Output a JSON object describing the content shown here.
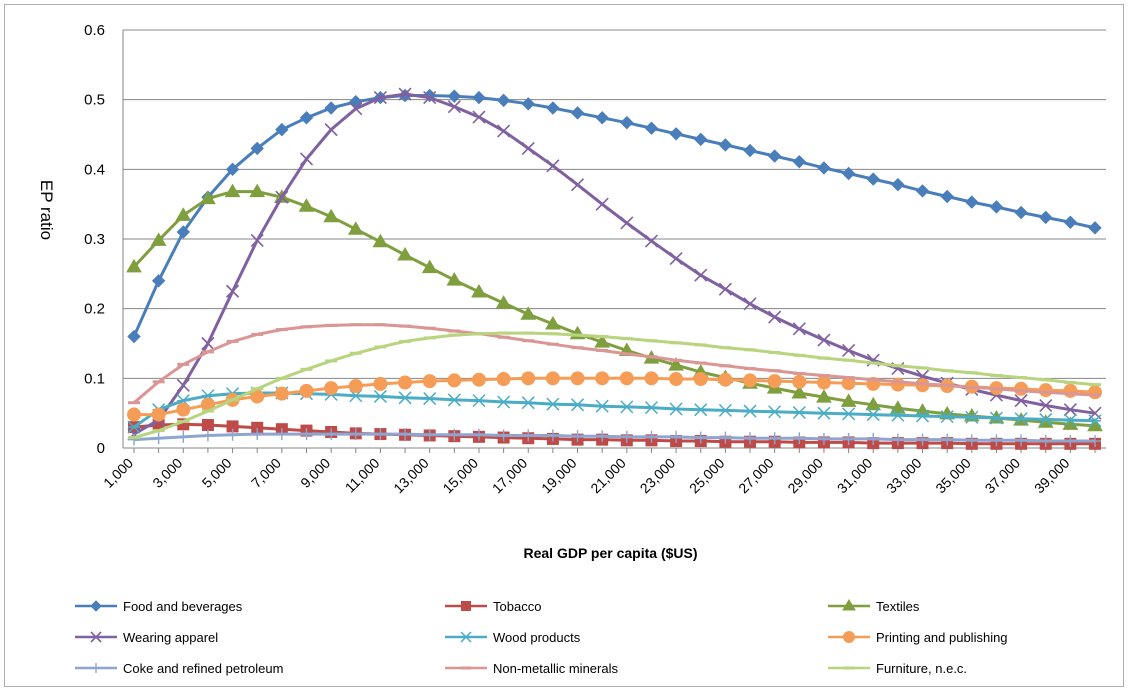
{
  "chart_data": {
    "type": "line",
    "title": "",
    "xlabel": "Real GDP per capita ($US)",
    "ylabel": "EP ratio",
    "ylim": [
      0,
      0.6
    ],
    "y_ticks": [
      "0",
      "0.1",
      "0.2",
      "0.3",
      "0.4",
      "0.5",
      "0.6"
    ],
    "y_tick_values": [
      0,
      0.1,
      0.2,
      0.3,
      0.4,
      0.5,
      0.6
    ],
    "x_tick_labels": [
      "1,000",
      "3,000",
      "5,000",
      "7,000",
      "9,000",
      "11,000",
      "13,000",
      "15,000",
      "17,000",
      "19,000",
      "21,000",
      "23,000",
      "25,000",
      "27,000",
      "29,000",
      "31,000",
      "33,000",
      "35,000",
      "37,000",
      "39,000"
    ],
    "x_tick_values": [
      1000,
      3000,
      5000,
      7000,
      9000,
      11000,
      13000,
      15000,
      17000,
      19000,
      21000,
      23000,
      25000,
      27000,
      29000,
      31000,
      33000,
      35000,
      37000,
      39000
    ],
    "xlim": [
      1000,
      40000
    ],
    "x": [
      1000,
      2000,
      3000,
      4000,
      5000,
      6000,
      7000,
      8000,
      9000,
      10000,
      11000,
      12000,
      13000,
      14000,
      15000,
      16000,
      17000,
      18000,
      19000,
      20000,
      21000,
      22000,
      23000,
      24000,
      25000,
      26000,
      27000,
      28000,
      29000,
      30000,
      31000,
      32000,
      33000,
      34000,
      35000,
      36000,
      37000,
      38000,
      39000,
      40000
    ],
    "grid": "horizontal",
    "legend_position": "bottom",
    "series": [
      {
        "name": "Food and beverages",
        "color": "#4a7ebb",
        "marker": "diamond",
        "values": [
          0.16,
          0.24,
          0.31,
          0.36,
          0.4,
          0.43,
          0.457,
          0.474,
          0.488,
          0.497,
          0.503,
          0.506,
          0.506,
          0.505,
          0.503,
          0.499,
          0.494,
          0.488,
          0.481,
          0.474,
          0.467,
          0.459,
          0.451,
          0.443,
          0.435,
          0.427,
          0.419,
          0.411,
          0.402,
          0.394,
          0.386,
          0.378,
          0.369,
          0.361,
          0.353,
          0.346,
          0.338,
          0.331,
          0.324,
          0.316
        ]
      },
      {
        "name": "Tobacco",
        "color": "#be4b48",
        "marker": "square",
        "values": [
          0.03,
          0.033,
          0.034,
          0.033,
          0.031,
          0.029,
          0.027,
          0.025,
          0.023,
          0.021,
          0.02,
          0.019,
          0.018,
          0.017,
          0.016,
          0.015,
          0.014,
          0.013,
          0.012,
          0.012,
          0.011,
          0.011,
          0.01,
          0.01,
          0.009,
          0.009,
          0.009,
          0.008,
          0.008,
          0.008,
          0.007,
          0.007,
          0.007,
          0.007,
          0.006,
          0.006,
          0.006,
          0.006,
          0.006,
          0.006
        ]
      },
      {
        "name": "Textiles",
        "color": "#7f9f3f",
        "marker": "triangle",
        "values": [
          0.26,
          0.298,
          0.334,
          0.358,
          0.368,
          0.368,
          0.36,
          0.347,
          0.332,
          0.314,
          0.296,
          0.277,
          0.259,
          0.241,
          0.224,
          0.208,
          0.192,
          0.178,
          0.164,
          0.152,
          0.14,
          0.129,
          0.119,
          0.109,
          0.101,
          0.093,
          0.086,
          0.079,
          0.073,
          0.067,
          0.062,
          0.057,
          0.053,
          0.049,
          0.046,
          0.043,
          0.04,
          0.037,
          0.034,
          0.032
        ]
      },
      {
        "name": "Wearing apparel",
        "color": "#7f61a0",
        "marker": "x",
        "values": [
          0.02,
          0.04,
          0.09,
          0.15,
          0.225,
          0.298,
          0.36,
          0.415,
          0.457,
          0.487,
          0.503,
          0.508,
          0.503,
          0.49,
          0.475,
          0.455,
          0.43,
          0.405,
          0.378,
          0.35,
          0.323,
          0.297,
          0.272,
          0.248,
          0.228,
          0.207,
          0.188,
          0.171,
          0.155,
          0.14,
          0.126,
          0.114,
          0.103,
          0.093,
          0.084,
          0.076,
          0.068,
          0.061,
          0.055,
          0.05
        ]
      },
      {
        "name": "Wood products",
        "color": "#4aacc5",
        "marker": "asterisk",
        "values": [
          0.03,
          0.055,
          0.068,
          0.075,
          0.078,
          0.079,
          0.079,
          0.078,
          0.077,
          0.075,
          0.074,
          0.072,
          0.071,
          0.069,
          0.068,
          0.066,
          0.065,
          0.063,
          0.062,
          0.06,
          0.059,
          0.058,
          0.056,
          0.055,
          0.054,
          0.053,
          0.052,
          0.051,
          0.05,
          0.049,
          0.048,
          0.047,
          0.046,
          0.045,
          0.044,
          0.043,
          0.042,
          0.041,
          0.04,
          0.039
        ]
      },
      {
        "name": "Printing and publishing",
        "color": "#f59d56",
        "marker": "circle",
        "values": [
          0.048,
          0.048,
          0.055,
          0.062,
          0.069,
          0.074,
          0.078,
          0.082,
          0.086,
          0.089,
          0.092,
          0.094,
          0.096,
          0.097,
          0.098,
          0.099,
          0.1,
          0.1,
          0.1,
          0.1,
          0.1,
          0.1,
          0.099,
          0.099,
          0.098,
          0.097,
          0.096,
          0.095,
          0.094,
          0.093,
          0.092,
          0.091,
          0.09,
          0.089,
          0.088,
          0.086,
          0.085,
          0.083,
          0.082,
          0.08
        ]
      },
      {
        "name": "Coke and refined petroleum",
        "color": "#8ea5d0",
        "marker": "plus",
        "values": [
          0.012,
          0.014,
          0.016,
          0.018,
          0.019,
          0.02,
          0.02,
          0.02,
          0.02,
          0.02,
          0.02,
          0.02,
          0.019,
          0.019,
          0.019,
          0.018,
          0.018,
          0.018,
          0.017,
          0.017,
          0.016,
          0.016,
          0.016,
          0.015,
          0.015,
          0.014,
          0.014,
          0.014,
          0.013,
          0.013,
          0.013,
          0.012,
          0.012,
          0.012,
          0.011,
          0.011,
          0.011,
          0.01,
          0.01,
          0.01
        ]
      },
      {
        "name": "Non-metallic minerals",
        "color": "#d99694",
        "marker": "dash",
        "values": [
          0.065,
          0.095,
          0.12,
          0.138,
          0.153,
          0.163,
          0.17,
          0.174,
          0.176,
          0.177,
          0.177,
          0.175,
          0.172,
          0.168,
          0.164,
          0.159,
          0.154,
          0.149,
          0.144,
          0.14,
          0.135,
          0.131,
          0.126,
          0.122,
          0.118,
          0.114,
          0.111,
          0.107,
          0.104,
          0.101,
          0.098,
          0.095,
          0.092,
          0.09,
          0.087,
          0.085,
          0.082,
          0.08,
          0.078,
          0.076
        ]
      },
      {
        "name": "Furniture, n.e.c.",
        "color": "#b8d47e",
        "marker": "dash",
        "values": [
          0.015,
          0.025,
          0.038,
          0.053,
          0.069,
          0.085,
          0.1,
          0.113,
          0.125,
          0.136,
          0.145,
          0.153,
          0.158,
          0.162,
          0.164,
          0.165,
          0.165,
          0.164,
          0.162,
          0.16,
          0.157,
          0.154,
          0.151,
          0.148,
          0.144,
          0.141,
          0.137,
          0.133,
          0.129,
          0.126,
          0.122,
          0.118,
          0.115,
          0.111,
          0.108,
          0.104,
          0.101,
          0.098,
          0.094,
          0.091
        ]
      }
    ]
  }
}
